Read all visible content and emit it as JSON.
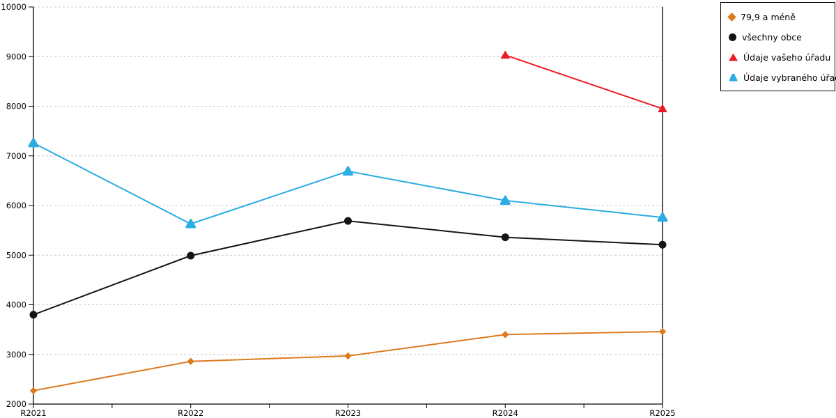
{
  "chart_data": {
    "type": "line",
    "title": "",
    "xlabel": "",
    "ylabel": "",
    "categories": [
      "R2021",
      "R2022",
      "R2023",
      "R2024",
      "R2025"
    ],
    "series": [
      {
        "name": "79,9 a méně",
        "color": "#DE7A1E",
        "marker": "diamond",
        "values": [
          2270,
          2860,
          2970,
          3400,
          3460
        ]
      },
      {
        "name": "všechny obce",
        "color": "#141414",
        "marker": "circle",
        "values": [
          3800,
          4990,
          5690,
          5360,
          5210
        ]
      },
      {
        "name": "Údaje vašeho úřadu",
        "color": "#EC1C24",
        "marker": "triangle",
        "values": [
          null,
          null,
          null,
          9030,
          7950
        ]
      },
      {
        "name": "Údaje vybraného úřadu",
        "color": "#2BACE3",
        "marker": "triangle-rounded",
        "values": [
          7260,
          5630,
          6690,
          6100,
          5760
        ]
      }
    ],
    "ylim": [
      2000,
      10000
    ],
    "y_tick_interval": 1000,
    "y_tick_labels": [
      "2000",
      "3000",
      "4000",
      "5000",
      "6000",
      "7000",
      "8000",
      "9000",
      "10000"
    ],
    "grid": {
      "horizontal": true,
      "style": "dashed",
      "color": "#C9C9C9"
    },
    "axis_color": "#000000",
    "legend_position": "top-right"
  }
}
